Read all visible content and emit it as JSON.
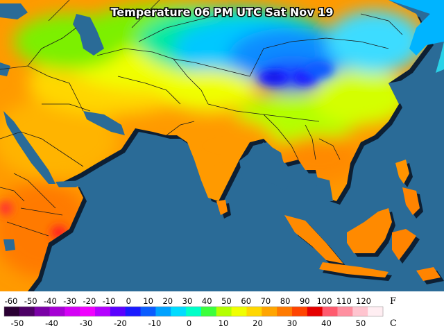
{
  "map": {
    "title": "Temperature 06 PM UTC Sat Nov 19",
    "ocean_color": "#2a6b97",
    "land_shadow_color": "#0d1f33",
    "border_color": "#1a1a1a"
  },
  "legend": {
    "fahrenheit_unit": "F",
    "celsius_unit": "C",
    "fahrenheit_ticks": [
      "-60",
      "-50",
      "-40",
      "-30",
      "-20",
      "-10",
      "0",
      "10",
      "20",
      "30",
      "40",
      "50",
      "60",
      "70",
      "80",
      "90",
      "100",
      "110",
      "120"
    ],
    "celsius_ticks": [
      "-50",
      "-40",
      "-30",
      "-20",
      "-10",
      "0",
      "10",
      "20",
      "30",
      "40",
      "50"
    ],
    "colors": [
      "#2a0033",
      "#4d0066",
      "#7a00a6",
      "#a600d4",
      "#d400f5",
      "#f000ff",
      "#b400ff",
      "#5a00ff",
      "#1a1aff",
      "#0a5cff",
      "#00a2ff",
      "#00dcff",
      "#00ffc8",
      "#3cff3c",
      "#b4ff00",
      "#f0ff00",
      "#ffd700",
      "#ffa500",
      "#ff7a00",
      "#ff4400",
      "#e60000",
      "#ff5a6e",
      "#ff8fa0",
      "#ffc4cf",
      "#ffeef2"
    ]
  }
}
